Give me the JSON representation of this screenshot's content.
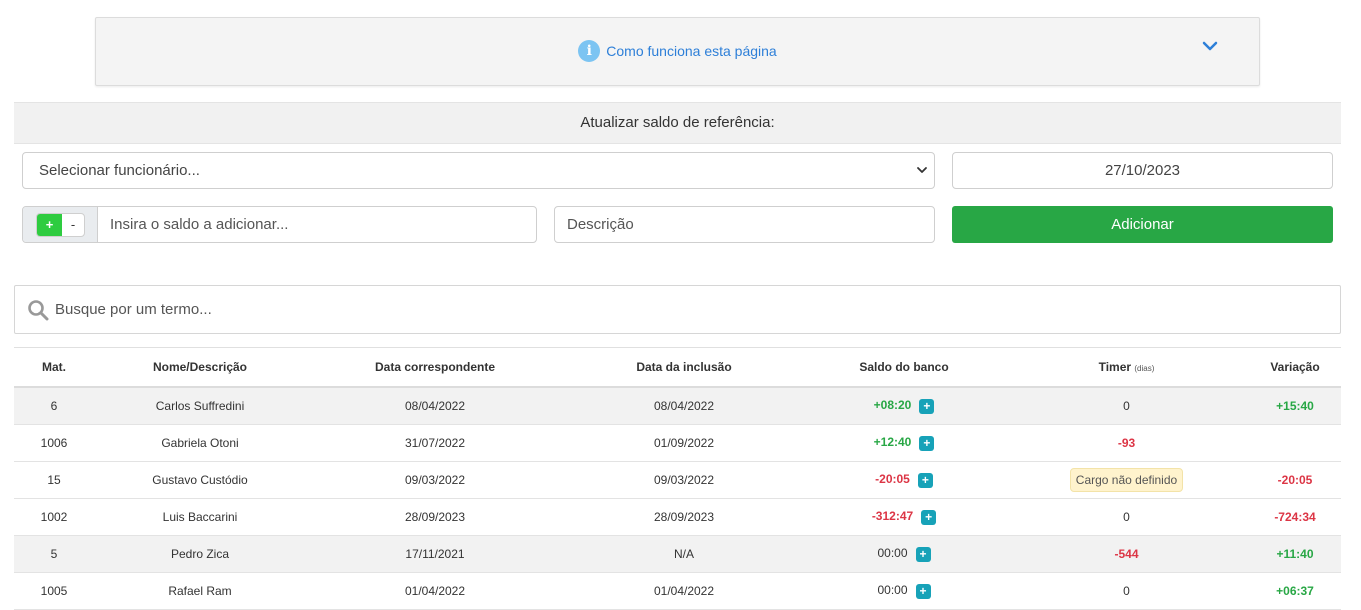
{
  "accordion": {
    "title": "Como funciona esta página",
    "info_icon": "info-icon",
    "chevron_icon": "chevron-down-icon",
    "accent": "#2d7fd8"
  },
  "section": {
    "title": "Atualizar saldo de referência:"
  },
  "form": {
    "employee_select": "Selecionar funcionário...",
    "date": "27/10/2023",
    "toggle_plus": "+",
    "toggle_minus": "-",
    "saldo_placeholder": "Insira o saldo a adicionar...",
    "descricao_placeholder": "Descrição",
    "add_button": "Adicionar",
    "add_color": "#28a745"
  },
  "search": {
    "placeholder": "Busque por um termo...",
    "icon": "search-icon"
  },
  "table": {
    "headers": {
      "mat": "Mat.",
      "nome": "Nome/Descrição",
      "data_corr": "Data correspondente",
      "data_incl": "Data da inclusão",
      "saldo": "Saldo do banco",
      "timer": "Timer",
      "timer_unit": "(dias)",
      "variacao": "Variação"
    },
    "rows": [
      {
        "mat": "6",
        "nome": "Carlos Suffredini",
        "data_corr": "08/04/2022",
        "data_incl": "08/04/2022",
        "saldo": "+08:20",
        "timer": "0",
        "variacao": "+15:40"
      },
      {
        "mat": "1006",
        "nome": "Gabriela Otoni",
        "data_corr": "31/07/2022",
        "data_incl": "01/09/2022",
        "saldo": "+12:40",
        "timer": "-93",
        "variacao": ""
      },
      {
        "mat": "15",
        "nome": "Gustavo Custódio",
        "data_corr": "09/03/2022",
        "data_incl": "09/03/2022",
        "saldo": "-20:05",
        "timer": "Cargo não definido",
        "variacao": "-20:05"
      },
      {
        "mat": "1002",
        "nome": "Luis Baccarini",
        "data_corr": "28/09/2023",
        "data_incl": "28/09/2023",
        "saldo": "-312:47",
        "timer": "0",
        "variacao": "-724:34"
      },
      {
        "mat": "5",
        "nome": "Pedro Zica",
        "data_corr": "17/11/2021",
        "data_incl": "N/A",
        "saldo": "00:00",
        "timer": "-544",
        "variacao": "+11:40"
      },
      {
        "mat": "1005",
        "nome": "Rafael Ram",
        "data_corr": "01/04/2022",
        "data_incl": "01/04/2022",
        "saldo": "00:00",
        "timer": "0",
        "variacao": "+06:37"
      }
    ],
    "add_symbol": "+"
  }
}
